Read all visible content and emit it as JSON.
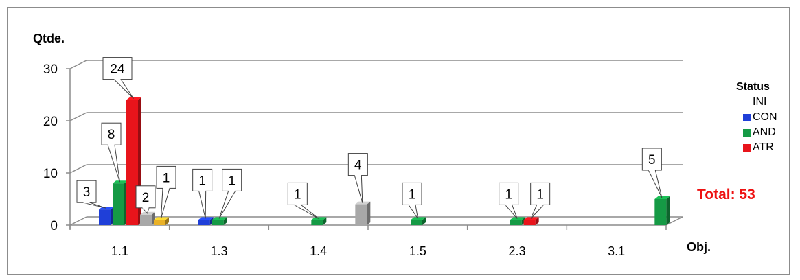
{
  "chart_data": {
    "type": "bar",
    "ylabel": "Qtde.",
    "xlabel": "Obj.",
    "ylim": [
      0,
      30
    ],
    "yticks": [
      "0",
      "10",
      "20",
      "30"
    ],
    "categories": [
      "1.1",
      "1.3",
      "1.4",
      "1.5",
      "2.3",
      "3.1"
    ],
    "legend_title": "Status",
    "legend_position": "right",
    "total_label": "Total: 53",
    "series": [
      {
        "name": "INI",
        "color": "#ffffff",
        "in_legend": true
      },
      {
        "name": "CON",
        "color": "#1f3fd8",
        "in_legend": true
      },
      {
        "name": "AND",
        "color": "#159a45",
        "in_legend": true
      },
      {
        "name": "ATR",
        "color": "#e8141b",
        "in_legend": true
      },
      {
        "name": "",
        "color": "#a8a8a8",
        "in_legend": false
      },
      {
        "name": "",
        "color": "#e9b127",
        "in_legend": false
      }
    ],
    "bars": [
      {
        "category": "1.1",
        "series": 1,
        "value": 3,
        "label": "3"
      },
      {
        "category": "1.1",
        "series": 2,
        "value": 8,
        "label": "8"
      },
      {
        "category": "1.1",
        "series": 3,
        "value": 24,
        "label": "24"
      },
      {
        "category": "1.1",
        "series": 4,
        "value": 2,
        "label": "2"
      },
      {
        "category": "1.1",
        "series": 5,
        "value": 1,
        "label": "1"
      },
      {
        "category": "1.3",
        "series": 1,
        "value": 1,
        "label": "1"
      },
      {
        "category": "1.3",
        "series": 2,
        "value": 1,
        "label": "1"
      },
      {
        "category": "1.4",
        "series": 2,
        "value": 1,
        "label": "1"
      },
      {
        "category": "1.4",
        "series": 4,
        "value": 4,
        "label": "4"
      },
      {
        "category": "1.5",
        "series": 2,
        "value": 1,
        "label": "1"
      },
      {
        "category": "2.3",
        "series": 2,
        "value": 1,
        "label": "1"
      },
      {
        "category": "2.3",
        "series": 3,
        "value": 1,
        "label": "1"
      },
      {
        "category": "3.1",
        "series": 2,
        "value": 5,
        "label": "5"
      }
    ]
  }
}
